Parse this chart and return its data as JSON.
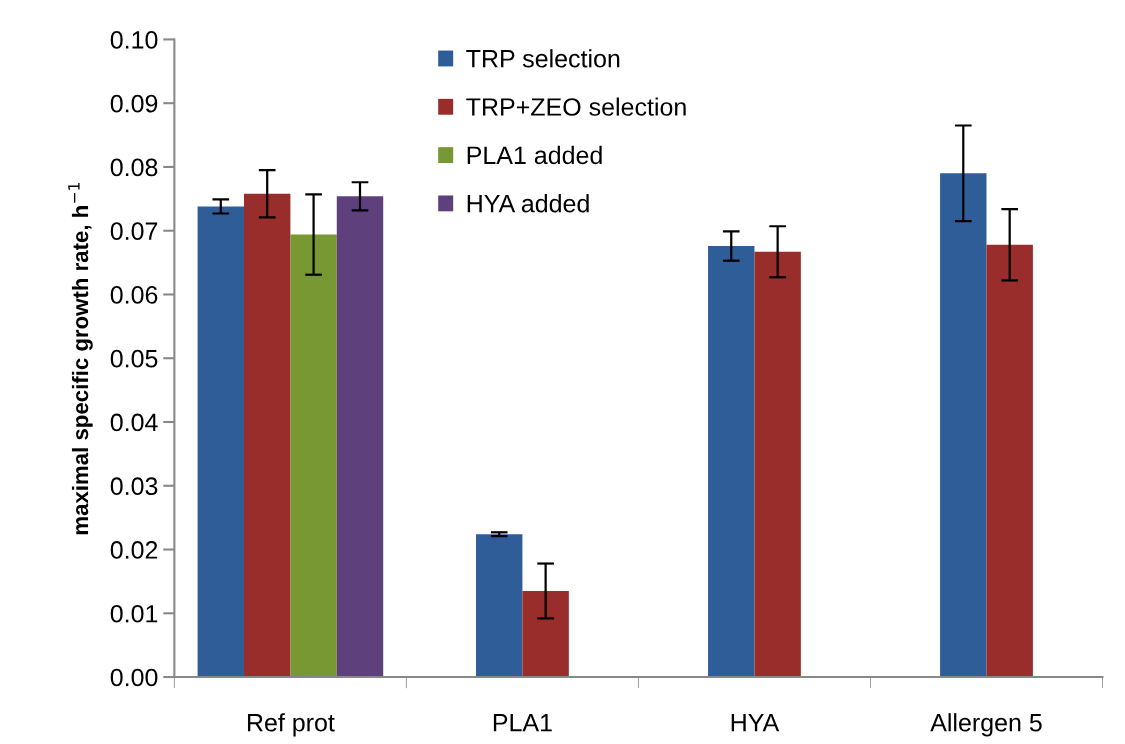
{
  "chart_data": {
    "type": "bar",
    "ylabel": "maximal specific growth rate, h$^{−1}$",
    "categories": [
      "Ref prot",
      "PLA1",
      "HYA",
      "Allergen 5"
    ],
    "series": [
      {
        "name": "TRP selection",
        "color": "#2e5d98",
        "values": [
          0.0738,
          0.0224,
          0.0676,
          0.079
        ],
        "errors": [
          0.0011,
          0.0003,
          0.0023,
          0.0075
        ]
      },
      {
        "name": "TRP+ZEO selection",
        "color": "#982d2b",
        "values": [
          0.0758,
          0.0135,
          0.0667,
          0.0678
        ],
        "errors": [
          0.0037,
          0.0043,
          0.004,
          0.0056
        ]
      },
      {
        "name": "PLA1 added",
        "color": "#779833",
        "values": [
          0.0694,
          null,
          null,
          null
        ],
        "errors": [
          0.0063,
          null,
          null,
          null
        ]
      },
      {
        "name": "HYA added",
        "color": "#5e417c",
        "values": [
          0.0754,
          null,
          null,
          null
        ],
        "errors": [
          0.0022,
          null,
          null,
          null
        ]
      }
    ],
    "ylim": [
      0,
      0.1
    ],
    "yticks": [
      {
        "value": 0,
        "label": "0.00"
      },
      0.01,
      0.02,
      0.03,
      0.04,
      0.05,
      0.06,
      0.07,
      0.08,
      0.09,
      {
        "value": 0.1,
        "label": "0.10"
      }
    ],
    "grid": false,
    "legend": "top"
  }
}
